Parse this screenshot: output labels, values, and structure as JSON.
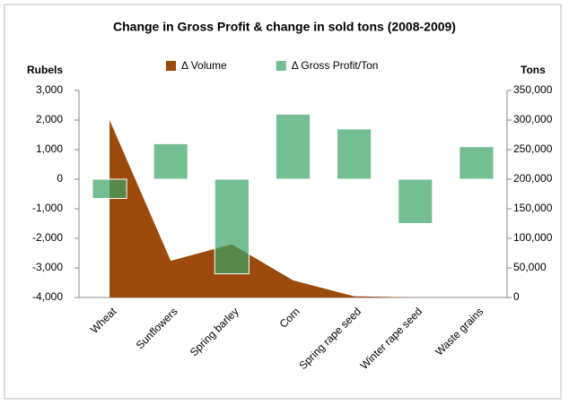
{
  "chart_data": {
    "type": "combo",
    "title": "Change in Gross Profit & change in sold tons (2008-2009)",
    "y_label": "Rubels",
    "y2_label": "Tons",
    "categories": [
      "Wheat",
      "Sunflowers",
      "Spring barley",
      "Corn",
      "Spring rape seed",
      "Winter rape seed",
      "Waste grains"
    ],
    "series": [
      {
        "name": "Δ Volume",
        "type": "area",
        "axis": "y2",
        "color": "#9c4a0c",
        "values": [
          300000,
          62000,
          90000,
          29000,
          2000,
          0,
          0
        ]
      },
      {
        "name": "Δ Gross Profit/Ton",
        "type": "bar",
        "color": "#3ba366",
        "values": [
          -650,
          1200,
          -3200,
          2200,
          1700,
          -1500,
          1100
        ]
      }
    ],
    "ylim": [
      -4000,
      3000
    ],
    "yticks": [
      {
        "value": 3000,
        "label": "3,000"
      },
      {
        "value": 2000,
        "label": "2,000"
      },
      {
        "value": 1000,
        "label": "1,000"
      },
      0,
      {
        "value": -1000,
        "label": "-1,000"
      },
      {
        "value": -2000,
        "label": "-2,000"
      },
      {
        "value": -3000,
        "label": "-3,000"
      },
      {
        "value": -4000,
        "label": "-4,000"
      }
    ],
    "y2lim": [
      0,
      350000
    ],
    "y2ticks": [
      {
        "value": 350000,
        "label": "350,000"
      },
      {
        "value": 300000,
        "label": "300,000"
      },
      {
        "value": 250000,
        "label": "250,000"
      },
      {
        "value": 200000,
        "label": "200,000"
      },
      {
        "value": 150000,
        "label": "150,000"
      },
      {
        "value": 100000,
        "label": "100,000"
      },
      {
        "value": 50000,
        "label": "50,000"
      },
      0
    ],
    "legend": "top",
    "grid": false
  }
}
